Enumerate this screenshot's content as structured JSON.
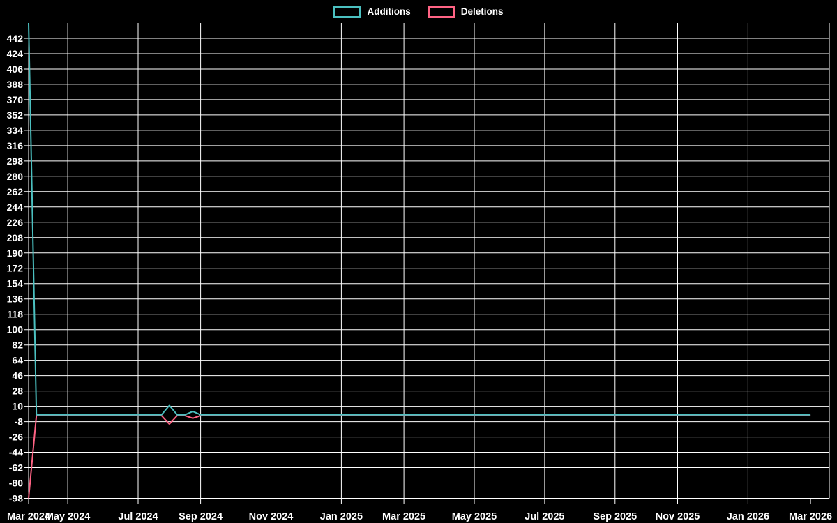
{
  "chart_data": {
    "type": "line",
    "title": "",
    "background_color": "#000000",
    "grid_color": "#ffffff",
    "text_color": "#ffffff",
    "grid": true,
    "legend_position": "top-center",
    "x_axis": {
      "unit": "weekly",
      "start_date": "2024-03-31",
      "num_points": 101,
      "xlim_weeks": [
        0,
        102.4
      ],
      "ticks": [
        {
          "label": "Mar 2024",
          "week": 0,
          "gridline": false
        },
        {
          "label": "May 2024",
          "week": 5,
          "gridline": true
        },
        {
          "label": "Jul 2024",
          "week": 14,
          "gridline": true
        },
        {
          "label": "Sep 2024",
          "week": 22,
          "gridline": true
        },
        {
          "label": "Nov 2024",
          "week": 31,
          "gridline": true
        },
        {
          "label": "Jan 2025",
          "week": 40,
          "gridline": true
        },
        {
          "label": "Mar 2025",
          "week": 48,
          "gridline": true
        },
        {
          "label": "May 2025",
          "week": 57,
          "gridline": true
        },
        {
          "label": "Jul 2025",
          "week": 66,
          "gridline": true
        },
        {
          "label": "Sep 2025",
          "week": 75,
          "gridline": true
        },
        {
          "label": "Nov 2025",
          "week": 83,
          "gridline": true
        },
        {
          "label": "Jan 2026",
          "week": 92,
          "gridline": true
        },
        {
          "label": "Mar 2026",
          "week": 100,
          "gridline": false
        }
      ]
    },
    "y_axis": {
      "ylim": [
        -98,
        460
      ],
      "tick_step": 18,
      "ticks": [
        442,
        424,
        406,
        388,
        370,
        352,
        334,
        316,
        298,
        280,
        262,
        244,
        226,
        208,
        190,
        172,
        154,
        136,
        118,
        100,
        82,
        64,
        46,
        28,
        10,
        -8,
        -26,
        -44,
        -62,
        -80,
        -98
      ]
    },
    "series": [
      {
        "name": "Additions",
        "color": "#4bc0c0",
        "baseline_value": 0,
        "values_by_date": {
          "2024-03-31": 460,
          "2024-08-04": 11,
          "2024-08-25": 4
        }
      },
      {
        "name": "Deletions",
        "color": "#ff6384",
        "baseline_value": -1,
        "values_by_date": {
          "2024-03-31": -98,
          "2024-08-04": -11,
          "2024-08-25": -4
        }
      }
    ]
  }
}
